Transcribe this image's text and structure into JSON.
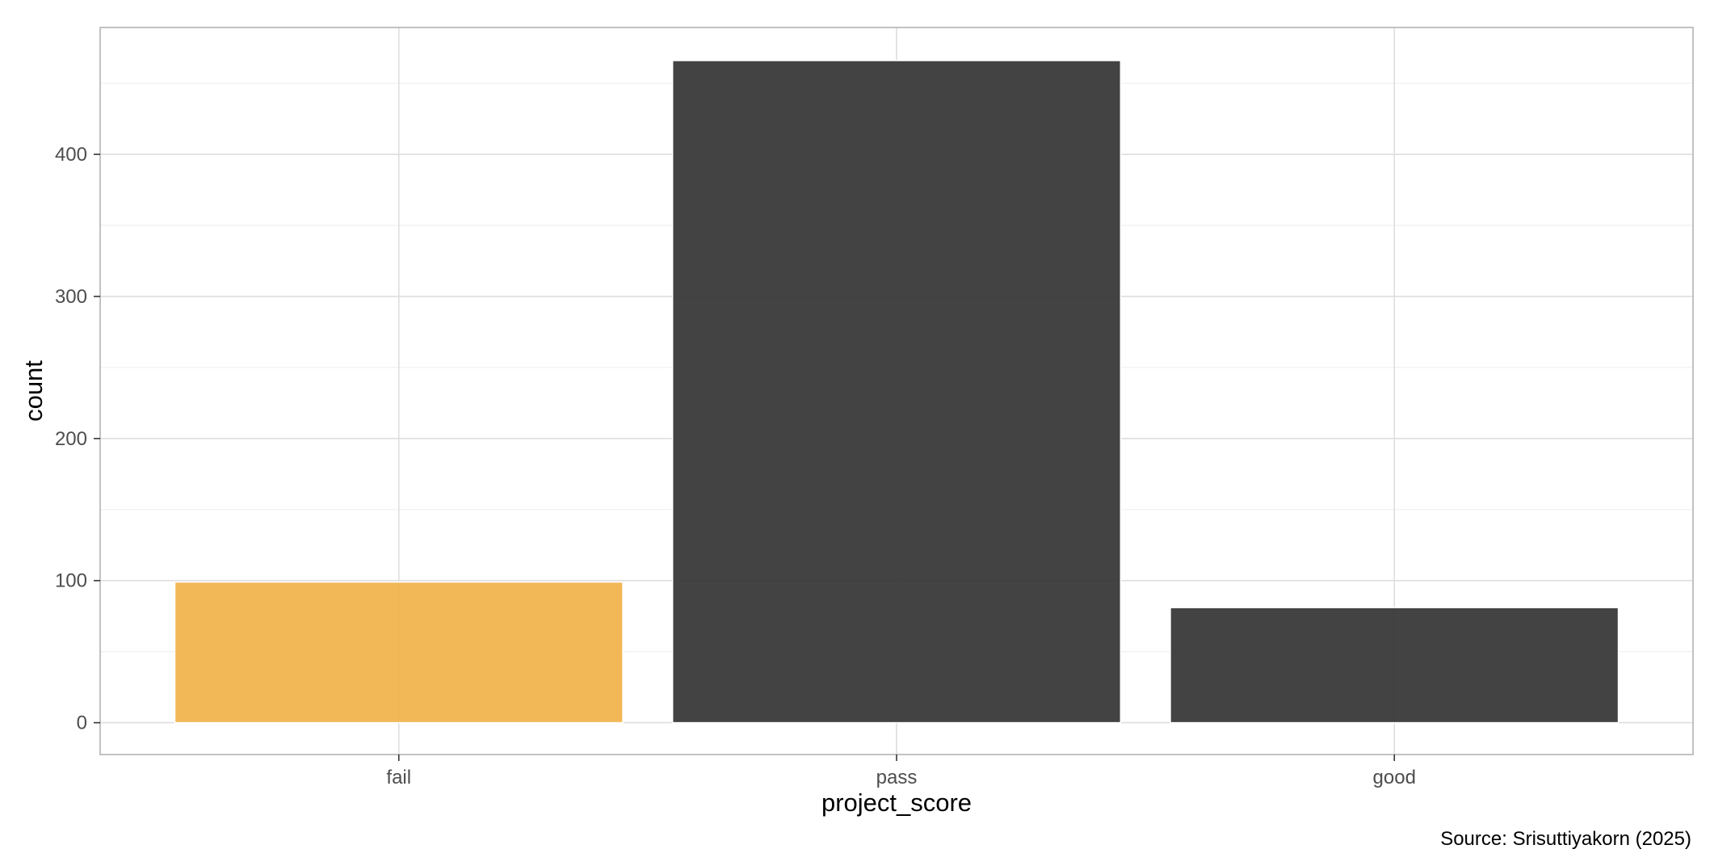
{
  "chart_data": {
    "type": "bar",
    "categories": [
      "fail",
      "pass",
      "good"
    ],
    "values": [
      99,
      466,
      81
    ],
    "bar_colors": [
      "#F1B24A",
      "#333333",
      "#333333"
    ],
    "bar_opacity": 0.92,
    "xlabel": "project_score",
    "ylabel": "count",
    "ylim": [
      -22.4,
      489.3
    ],
    "yticks": [
      0,
      100,
      200,
      300,
      400
    ],
    "ytick_labels": [
      "0",
      "100",
      "200",
      "300",
      "400"
    ],
    "grid": true,
    "caption": "Source: Srisuttiyakorn (2025)"
  }
}
